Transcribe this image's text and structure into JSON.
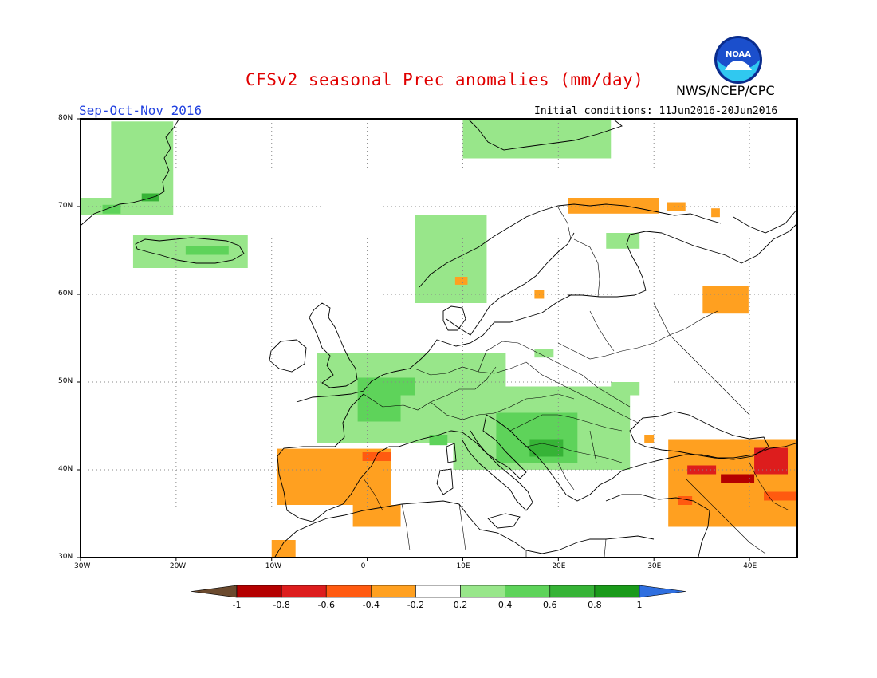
{
  "title": "CFSv2 seasonal Prec anomalies (mm/day)",
  "period": "Sep-Oct-Nov 2016",
  "initial_conditions": "Initial conditions: 11Jun2016-20Jun2016",
  "agency": "NWS/NCEP/CPC",
  "logo_text": "NOAA",
  "map": {
    "lon_range": [
      -30,
      45
    ],
    "lat_range": [
      30,
      80
    ],
    "lat_labels": [
      "80N",
      "70N",
      "60N",
      "50N",
      "40N",
      "30N"
    ],
    "lon_labels": [
      "30W",
      "20W",
      "10W",
      "0",
      "10E",
      "20E",
      "30E",
      "40E"
    ],
    "grid": true
  },
  "colorbar": {
    "labels": [
      "-1",
      "-0.8",
      "-0.6",
      "-0.4",
      "-0.2",
      "0.2",
      "0.4",
      "0.6",
      "0.8",
      "1"
    ],
    "colors": [
      "#6b4a2e",
      "#b40000",
      "#dd1d1d",
      "#ff5a10",
      "#ffa020",
      "#ffffff",
      "#98e68a",
      "#5ed35a",
      "#36b336",
      "#1a9a1a",
      "#2f6fe0"
    ]
  },
  "chart_data": {
    "type": "heatmap",
    "title": "CFSv2 seasonal Prec anomalies (mm/day)",
    "units": "mm/day",
    "x_range": [
      -30,
      45
    ],
    "y_range": [
      30,
      80
    ],
    "levels": [
      -1,
      -0.8,
      -0.6,
      -0.4,
      -0.2,
      0.2,
      0.4,
      0.6,
      0.8,
      1
    ],
    "cells": [
      {
        "lon_min": -26.8,
        "lon_max": -20.3,
        "lat_min": 69.0,
        "lat_max": 79.7,
        "value": 0.3
      },
      {
        "lon_min": -30.0,
        "lon_max": -25.0,
        "lat_min": 69.0,
        "lat_max": 71.0,
        "value": 0.3
      },
      {
        "lon_min": -27.7,
        "lon_max": -25.8,
        "lat_min": 69.2,
        "lat_max": 70.2,
        "value": 0.5
      },
      {
        "lon_min": -23.6,
        "lon_max": -21.8,
        "lat_min": 70.6,
        "lat_max": 71.5,
        "value": 0.7
      },
      {
        "lon_min": -24.5,
        "lon_max": -12.5,
        "lat_min": 63.0,
        "lat_max": 66.8,
        "value": 0.3
      },
      {
        "lon_min": -19.0,
        "lon_max": -14.5,
        "lat_min": 64.5,
        "lat_max": 65.5,
        "value": 0.5
      },
      {
        "lon_min": 10.0,
        "lon_max": 25.5,
        "lat_min": 75.5,
        "lat_max": 80.0,
        "value": 0.3
      },
      {
        "lon_min": 5.0,
        "lon_max": 12.5,
        "lat_min": 59.0,
        "lat_max": 69.0,
        "value": 0.3
      },
      {
        "lon_min": 25.0,
        "lon_max": 28.5,
        "lat_min": 65.2,
        "lat_max": 67.0,
        "value": 0.3
      },
      {
        "lon_min": 21.0,
        "lon_max": 30.5,
        "lat_min": 69.2,
        "lat_max": 71.0,
        "value": -0.3
      },
      {
        "lon_min": 31.4,
        "lon_max": 33.3,
        "lat_min": 69.5,
        "lat_max": 70.5,
        "value": -0.3
      },
      {
        "lon_min": 36.0,
        "lon_max": 36.9,
        "lat_min": 68.8,
        "lat_max": 69.8,
        "value": -0.3
      },
      {
        "lon_min": 35.1,
        "lon_max": 39.9,
        "lat_min": 57.8,
        "lat_max": 61.0,
        "value": -0.3
      },
      {
        "lon_min": 9.2,
        "lon_max": 10.5,
        "lat_min": 61.1,
        "lat_max": 62.0,
        "value": -0.3
      },
      {
        "lon_min": 17.5,
        "lon_max": 18.5,
        "lat_min": 59.5,
        "lat_max": 60.5,
        "value": -0.3
      },
      {
        "lon_min": -5.3,
        "lon_max": 14.5,
        "lat_min": 43.0,
        "lat_max": 53.3,
        "value": 0.3
      },
      {
        "lon_min": -1.0,
        "lon_max": 3.5,
        "lat_min": 45.5,
        "lat_max": 50.5,
        "value": 0.5
      },
      {
        "lon_min": 3.0,
        "lon_max": 5.0,
        "lat_min": 48.5,
        "lat_max": 50.5,
        "value": 0.5
      },
      {
        "lon_min": 6.5,
        "lon_max": 8.4,
        "lat_min": 42.8,
        "lat_max": 44.0,
        "value": 0.5
      },
      {
        "lon_min": 9.0,
        "lon_max": 27.5,
        "lat_min": 40.0,
        "lat_max": 49.5,
        "value": 0.3
      },
      {
        "lon_min": 13.5,
        "lon_max": 22.0,
        "lat_min": 40.8,
        "lat_max": 46.5,
        "value": 0.5
      },
      {
        "lon_min": 17.0,
        "lon_max": 20.5,
        "lat_min": 41.5,
        "lat_max": 43.5,
        "value": 0.7
      },
      {
        "lon_min": 25.5,
        "lon_max": 28.5,
        "lat_min": 48.5,
        "lat_max": 50.0,
        "value": 0.3
      },
      {
        "lon_min": 17.5,
        "lon_max": 19.5,
        "lat_min": 52.8,
        "lat_max": 53.8,
        "value": 0.3
      },
      {
        "lon_min": -9.4,
        "lon_max": 2.5,
        "lat_min": 36.0,
        "lat_max": 42.4,
        "value": -0.3
      },
      {
        "lon_min": -0.5,
        "lon_max": 2.5,
        "lat_min": 41.0,
        "lat_max": 42.0,
        "value": -0.5
      },
      {
        "lon_min": -1.5,
        "lon_max": 3.5,
        "lat_min": 33.5,
        "lat_max": 36.0,
        "value": -0.3
      },
      {
        "lon_min": -10.0,
        "lon_max": -7.5,
        "lat_min": 30.0,
        "lat_max": 32.0,
        "value": -0.3
      },
      {
        "lon_min": 31.5,
        "lon_max": 45.0,
        "lat_min": 33.5,
        "lat_max": 43.5,
        "value": -0.3
      },
      {
        "lon_min": 33.5,
        "lon_max": 36.5,
        "lat_min": 39.5,
        "lat_max": 40.5,
        "value": -0.7
      },
      {
        "lon_min": 37.0,
        "lon_max": 40.5,
        "lat_min": 38.5,
        "lat_max": 39.5,
        "value": -0.9
      },
      {
        "lon_min": 40.5,
        "lon_max": 44.0,
        "lat_min": 39.5,
        "lat_max": 42.5,
        "value": -0.7
      },
      {
        "lon_min": 32.5,
        "lon_max": 34.0,
        "lat_min": 36.0,
        "lat_max": 37.0,
        "value": -0.5
      },
      {
        "lon_min": 41.5,
        "lon_max": 45.0,
        "lat_min": 36.5,
        "lat_max": 37.5,
        "value": -0.5
      },
      {
        "lon_min": 29.0,
        "lon_max": 30.0,
        "lat_min": 43.0,
        "lat_max": 44.0,
        "value": -0.3
      }
    ]
  }
}
